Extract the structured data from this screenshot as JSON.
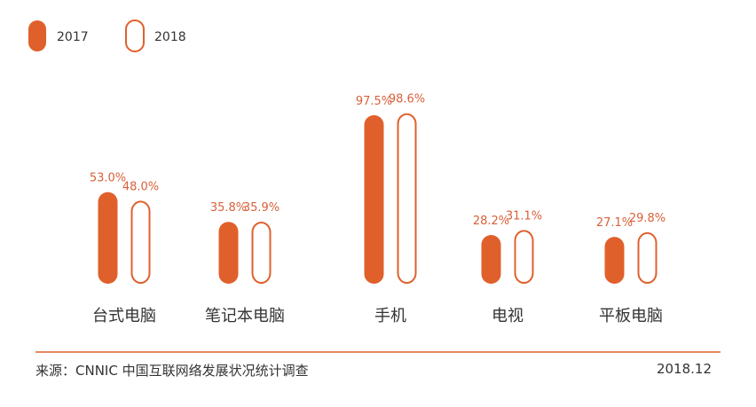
{
  "colors": {
    "accent": "#e0602c",
    "text_dark": "#333333",
    "text_label": "#d9603a"
  },
  "chart_data": {
    "type": "bar",
    "categories": [
      "台式电脑",
      "笔记本电脑",
      "手机",
      "电视",
      "平板电脑"
    ],
    "series": [
      {
        "name": "2017",
        "values": [
          53.0,
          35.8,
          97.5,
          28.2,
          27.1
        ]
      },
      {
        "name": "2018",
        "values": [
          48.0,
          35.9,
          98.6,
          31.1,
          29.8
        ]
      }
    ],
    "data_labels": [
      [
        "53.0%",
        "35.8%",
        "97.5%",
        "28.2%",
        "27.1%"
      ],
      [
        "48.0%",
        "35.9%",
        "98.6%",
        "31.1%",
        "29.8%"
      ]
    ],
    "ylim": [
      0,
      100
    ],
    "legend_position": "top-left",
    "grid": false
  },
  "footer": {
    "source": "来源：CNNIC 中国互联网络发展状况统计调查",
    "date": "2018.12"
  }
}
